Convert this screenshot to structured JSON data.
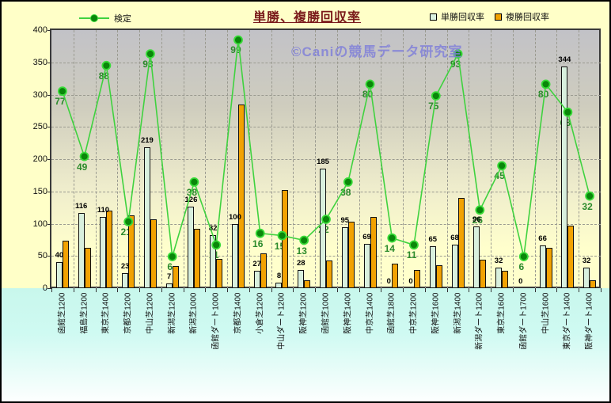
{
  "header": {
    "title": "単勝、複勝回収率",
    "legend_left_label": "検定",
    "legend_right": [
      {
        "label": "単勝回収率",
        "swatch_color": "#D9F0DE"
      },
      {
        "label": "複勝回収率",
        "swatch_color": "#F2A202"
      }
    ]
  },
  "watermark": "©Caniの競馬データ研究室",
  "colors": {
    "outer_background": "#FFFFC8",
    "bottom_band": "#C8F7EC",
    "plot_gradient_top": "#C2C2C7",
    "plot_gradient_bottom": "#FFFFCC",
    "bar_tansho_fill": "#D9F0DE",
    "bar_fukusho_fill": "#F2A202",
    "line": "#3FD23F",
    "dot_fill": "#0A870A",
    "dot_stroke": "#39DC39",
    "green_label": "#2B8A2B",
    "title": "#7A1A1A",
    "watermark": "#8080D8"
  },
  "chart_data": {
    "type": "bar",
    "subtype": "grouped bars + line on secondary axis",
    "title": "単勝、複勝回収率",
    "categories": [
      "函館芝1200",
      "福島芝1200",
      "東京芝1400",
      "京都芝1200",
      "中山芝1200",
      "新潟芝1200",
      "新潟芝1000",
      "函館ダート1000",
      "京都芝1400",
      "小倉芝1200",
      "中山ダート1200",
      "阪神芝1200",
      "函館芝1000",
      "阪神芝1400",
      "中京芝1400",
      "函館芝1800",
      "中京芝1200",
      "阪神芝1600",
      "新潟芝1400",
      "新潟ダート1200",
      "東京芝1600",
      "函館ダート1700",
      "中山芝1600",
      "東京ダート1400",
      "阪神ダート1400"
    ],
    "series": [
      {
        "name": "単勝回収率",
        "type": "bar",
        "values": [
          40,
          116,
          110,
          23,
          219,
          7,
          126,
          82,
          100,
          27,
          8,
          28,
          185,
          95,
          69,
          0,
          0,
          65,
          68,
          96,
          32,
          0,
          66,
          344,
          32
        ],
        "data_labels_visible": true
      },
      {
        "name": "複勝回収率",
        "type": "bar",
        "values": [
          74,
          63,
          120,
          113,
          107,
          34,
          92,
          45,
          285,
          54,
          152,
          12,
          43,
          103,
          111,
          38,
          28,
          36,
          140,
          44,
          27,
          0,
          63,
          97,
          12
        ],
        "data_labels_visible": false,
        "note": "values estimated from bar heights; chart shows no labels for this series"
      },
      {
        "name": "検定",
        "type": "line",
        "axis": "secondary",
        "values": [
          77,
          49,
          88,
          21,
          93,
          6,
          38,
          11,
          99,
          16,
          15,
          13,
          22,
          38,
          80,
          14,
          11,
          75,
          93,
          26,
          45,
          6,
          80,
          68,
          32
        ],
        "data_labels_visible": true
      }
    ],
    "primary_axis": {
      "min": 0,
      "max": 400,
      "tick_interval": 50,
      "ticks": [
        0,
        50,
        100,
        150,
        200,
        250,
        300,
        350,
        400
      ]
    },
    "secondary_axis": {
      "visible": false,
      "mapping_to_primary": {
        "scale": 3.61,
        "offset": 27.3
      }
    },
    "grid": "dashed horizontal and vertical gridlines",
    "legend_position": "top",
    "x_labels_rotation_deg": -90
  }
}
